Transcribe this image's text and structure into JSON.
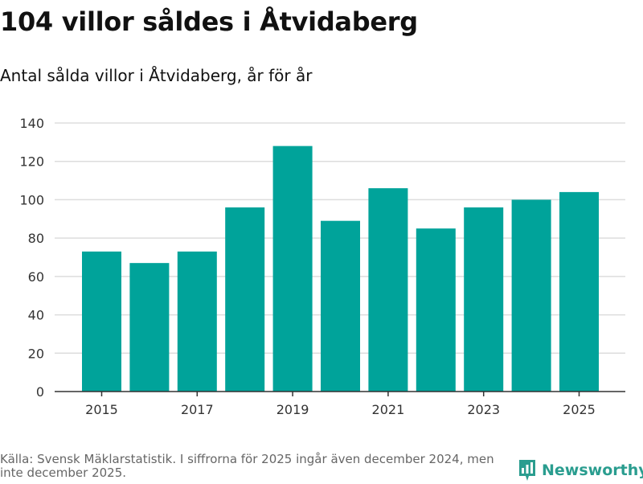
{
  "title": "104 villor såldes i Åtvidaberg",
  "subtitle": "Antal sålda villor i Åtvidaberg, år för år",
  "source": "Källa: Svensk Mäklarstatistik. I siffrorna för 2025 ingår även december 2024, men inte december 2025.",
  "brand": {
    "name": "Newsworthy",
    "icon": "bar-chart-logo-icon"
  },
  "colors": {
    "bar": "#00a39a",
    "grid": "#dddddd",
    "axis": "#333333",
    "brand": "#2a9d8f"
  },
  "chart_data": {
    "type": "bar",
    "title": "104 villor såldes i Åtvidaberg",
    "subtitle": "Antal sålda villor i Åtvidaberg, år för år",
    "xlabel": "",
    "ylabel": "",
    "categories": [
      2015,
      2016,
      2017,
      2018,
      2019,
      2020,
      2021,
      2022,
      2023,
      2024,
      2025
    ],
    "values": [
      73,
      67,
      73,
      96,
      128,
      89,
      106,
      85,
      96,
      100,
      104
    ],
    "x_tick_labels": [
      "2015",
      "2017",
      "2019",
      "2021",
      "2023",
      "2025"
    ],
    "y_ticks": [
      0,
      20,
      40,
      60,
      80,
      100,
      120,
      140
    ],
    "ylim": [
      0,
      140
    ],
    "grid": true,
    "legend": "none"
  }
}
